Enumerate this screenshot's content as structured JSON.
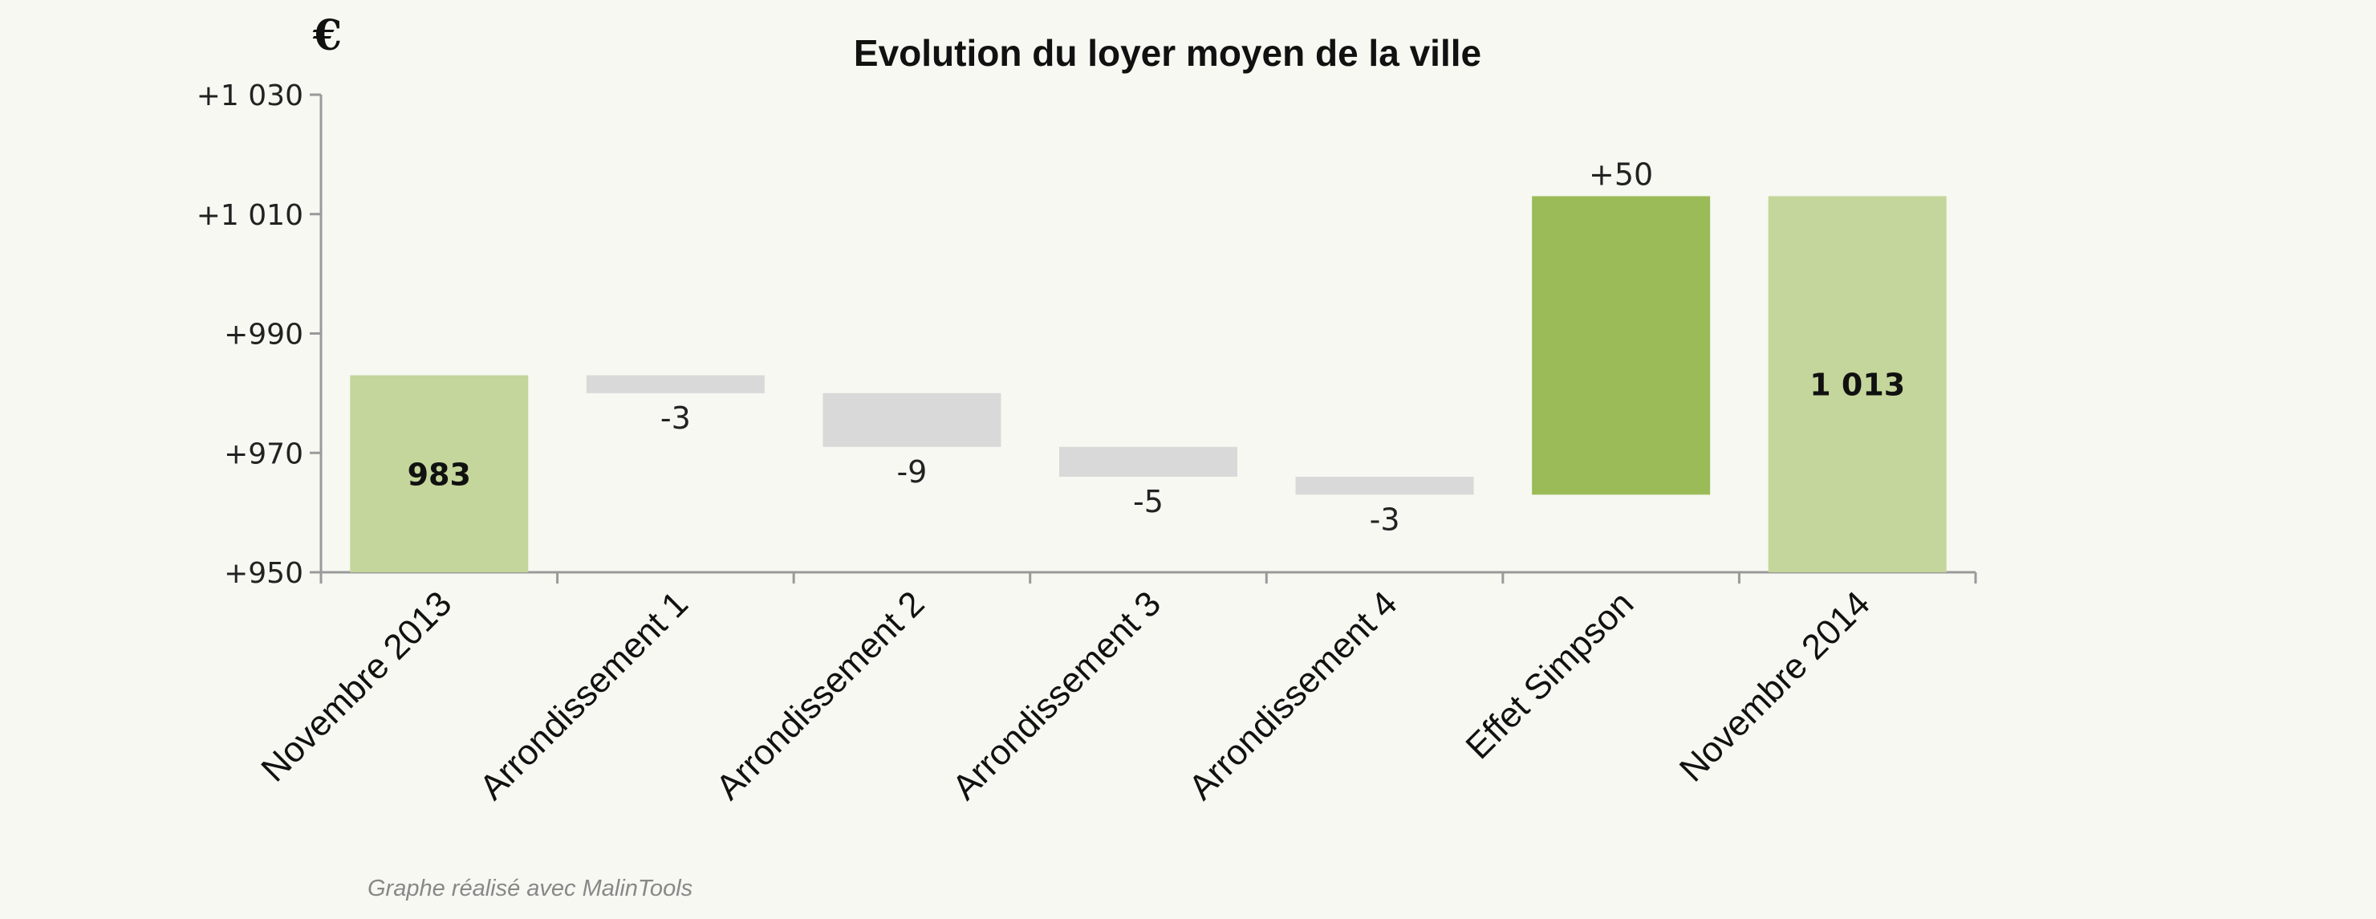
{
  "chart_data": {
    "type": "bar",
    "subtype": "waterfall",
    "title": "Evolution du loyer moyen de la ville",
    "unit_label": "€",
    "categories": [
      "Novembre 2013",
      "Arrondissement 1",
      "Arrondissement 2",
      "Arrondissement 3",
      "Arrondissement 4",
      "Effet Simpson",
      "Novembre 2014"
    ],
    "steps": [
      {
        "category": "Novembre 2013",
        "kind": "total",
        "value": 983,
        "label": "983"
      },
      {
        "category": "Arrondissement 1",
        "kind": "delta",
        "value": -3,
        "label": "-3"
      },
      {
        "category": "Arrondissement 2",
        "kind": "delta",
        "value": -9,
        "label": "-9"
      },
      {
        "category": "Arrondissement 3",
        "kind": "delta",
        "value": -5,
        "label": "-5"
      },
      {
        "category": "Arrondissement 4",
        "kind": "delta",
        "value": -3,
        "label": "-3"
      },
      {
        "category": "Effet Simpson",
        "kind": "delta",
        "value": 50,
        "label": "+50"
      },
      {
        "category": "Novembre 2014",
        "kind": "total",
        "value": 1013,
        "label": "1 013"
      }
    ],
    "y_ticks": [
      {
        "value": 950,
        "label": "+950"
      },
      {
        "value": 970,
        "label": "+970"
      },
      {
        "value": 990,
        "label": "+990"
      },
      {
        "value": 1010,
        "label": "+1 010"
      },
      {
        "value": 1030,
        "label": "+1 030"
      }
    ],
    "ylim": [
      950,
      1030
    ],
    "grid": false,
    "legend": "none",
    "colors": {
      "total": "#c4d69b",
      "decrease": "#d9d9d9",
      "increase": "#9bbb59",
      "axis": "#9a9a9a",
      "background": "#f6f8f1"
    }
  },
  "credit": "Graphe réalisé avec MalinTools"
}
